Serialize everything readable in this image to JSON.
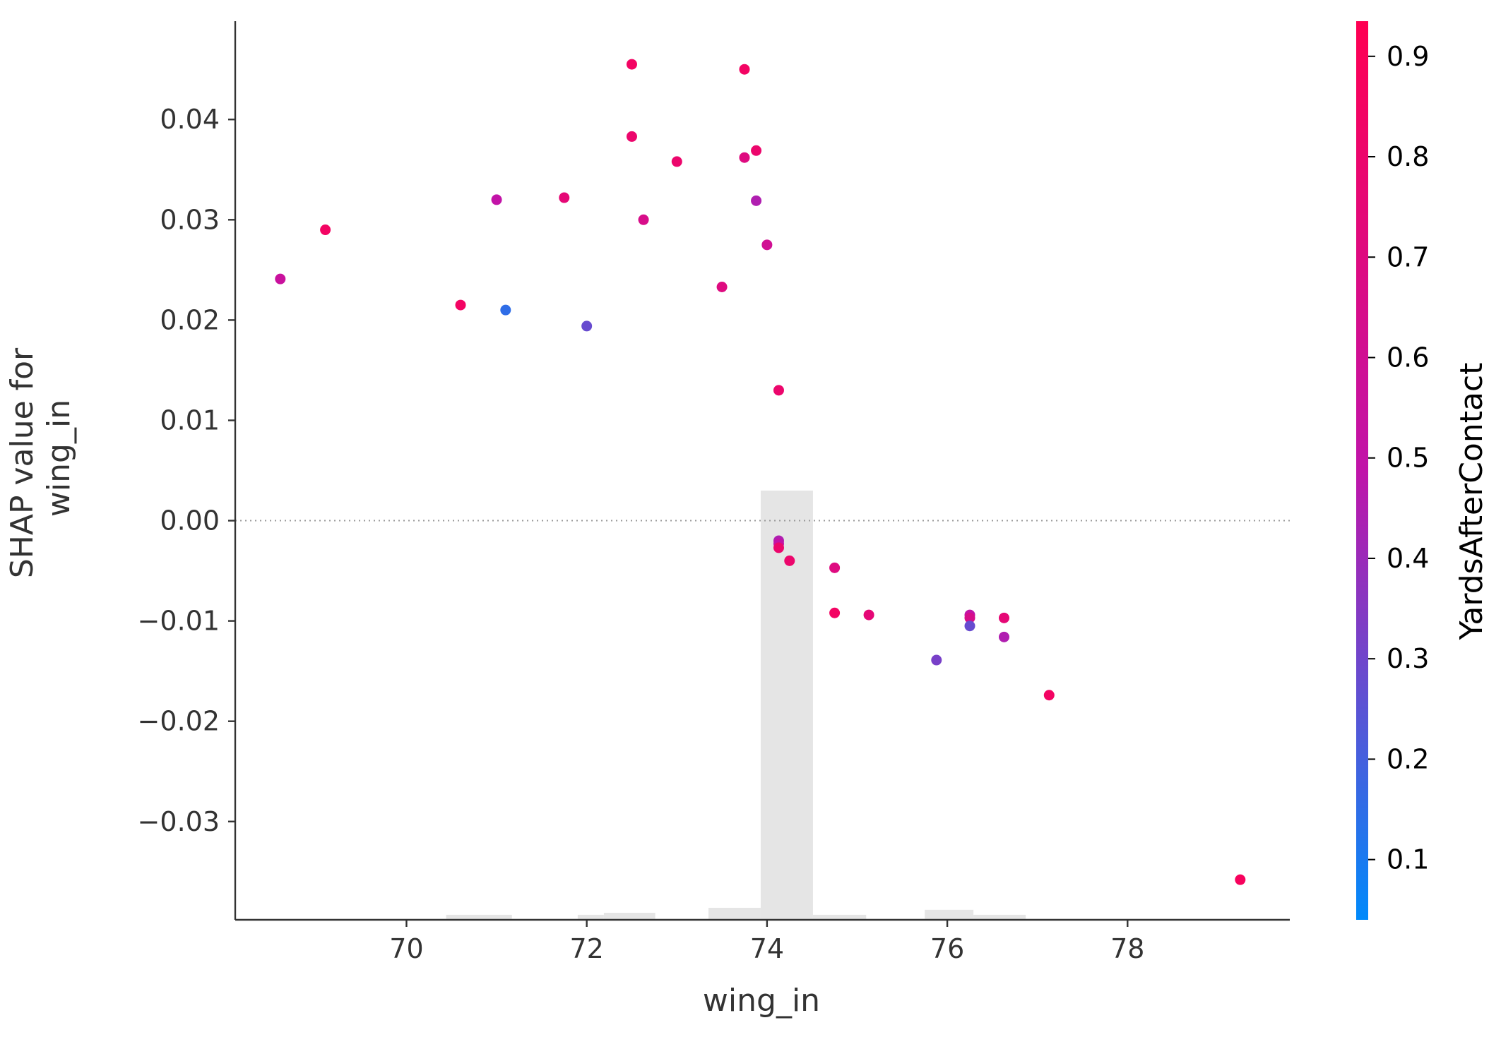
{
  "chart_data": {
    "type": "scatter",
    "xlabel": "wing_in",
    "ylabel_lines": [
      "SHAP value for",
      "wing_in"
    ],
    "xlim": [
      68.1,
      79.8
    ],
    "ylim": [
      -0.0398,
      0.0498
    ],
    "x_ticks": [
      {
        "value": 70,
        "label": "70"
      },
      {
        "value": 72,
        "label": "72"
      },
      {
        "value": 74,
        "label": "74"
      },
      {
        "value": 76,
        "label": "76"
      },
      {
        "value": 78,
        "label": "78"
      }
    ],
    "y_ticks": [
      {
        "value": 0.04,
        "label": "0.04"
      },
      {
        "value": 0.03,
        "label": "0.03"
      },
      {
        "value": 0.02,
        "label": "0.02"
      },
      {
        "value": 0.01,
        "label": "0.01"
      },
      {
        "value": 0.0,
        "label": "0.00"
      },
      {
        "value": -0.01,
        "label": "−0.01"
      },
      {
        "value": -0.02,
        "label": "−0.02"
      },
      {
        "value": -0.03,
        "label": "−0.03"
      }
    ],
    "zero_line": 0.0,
    "colorbar": {
      "label": "YardsAfterContact",
      "range": [
        0.04,
        0.935
      ],
      "ticks": [
        {
          "value": 0.1,
          "label": "0.1"
        },
        {
          "value": 0.2,
          "label": "0.2"
        },
        {
          "value": 0.3,
          "label": "0.3"
        },
        {
          "value": 0.4,
          "label": "0.4"
        },
        {
          "value": 0.5,
          "label": "0.5"
        },
        {
          "value": 0.6,
          "label": "0.6"
        },
        {
          "value": 0.7,
          "label": "0.7"
        },
        {
          "value": 0.8,
          "label": "0.8"
        },
        {
          "value": 0.9,
          "label": "0.9"
        }
      ],
      "color_low": "#008afb",
      "color_mid": "#c014a9",
      "color_high": "#ff0052"
    },
    "histogram": {
      "color": "#e5e5e5",
      "max_height_value": 0.0428,
      "bins": [
        {
          "x0": 68.1,
          "x1": 69.27,
          "h": 0.0001
        },
        {
          "x0": 69.27,
          "x1": 70.44,
          "h": 0.0001
        },
        {
          "x0": 70.44,
          "x1": 71.17,
          "h": 0.0005
        },
        {
          "x0": 71.17,
          "x1": 71.9,
          "h": 0.0001
        },
        {
          "x0": 71.9,
          "x1": 72.19,
          "h": 0.0005
        },
        {
          "x0": 72.19,
          "x1": 72.76,
          "h": 0.0007
        },
        {
          "x0": 72.76,
          "x1": 73.35,
          "h": 0.0001
        },
        {
          "x0": 73.35,
          "x1": 73.93,
          "h": 0.0012
        },
        {
          "x0": 73.93,
          "x1": 74.51,
          "h": 0.0428
        },
        {
          "x0": 74.51,
          "x1": 75.1,
          "h": 0.0005
        },
        {
          "x0": 75.1,
          "x1": 75.75,
          "h": 0.0001
        },
        {
          "x0": 75.75,
          "x1": 76.29,
          "h": 0.001
        },
        {
          "x0": 76.29,
          "x1": 76.87,
          "h": 0.0005
        },
        {
          "x0": 76.87,
          "x1": 79.8,
          "h": 0.0001
        }
      ]
    },
    "points": [
      {
        "x": 68.6,
        "y": 0.0241,
        "c": 0.55
      },
      {
        "x": 69.1,
        "y": 0.029,
        "c": 0.85
      },
      {
        "x": 70.6,
        "y": 0.0215,
        "c": 0.85
      },
      {
        "x": 71.0,
        "y": 0.032,
        "c": 0.5
      },
      {
        "x": 71.1,
        "y": 0.021,
        "c": 0.15
      },
      {
        "x": 71.75,
        "y": 0.0322,
        "c": 0.75
      },
      {
        "x": 72.0,
        "y": 0.0194,
        "c": 0.28
      },
      {
        "x": 72.5,
        "y": 0.0455,
        "c": 0.85
      },
      {
        "x": 72.5,
        "y": 0.0383,
        "c": 0.8
      },
      {
        "x": 72.63,
        "y": 0.03,
        "c": 0.65
      },
      {
        "x": 73.0,
        "y": 0.0358,
        "c": 0.8
      },
      {
        "x": 73.5,
        "y": 0.0233,
        "c": 0.7
      },
      {
        "x": 73.75,
        "y": 0.045,
        "c": 0.85
      },
      {
        "x": 73.75,
        "y": 0.0362,
        "c": 0.7
      },
      {
        "x": 73.88,
        "y": 0.0369,
        "c": 0.8
      },
      {
        "x": 73.88,
        "y": 0.0319,
        "c": 0.45
      },
      {
        "x": 74.0,
        "y": 0.0275,
        "c": 0.6
      },
      {
        "x": 74.13,
        "y": 0.013,
        "c": 0.8
      },
      {
        "x": 74.13,
        "y": -0.002,
        "c": 0.45
      },
      {
        "x": 74.13,
        "y": -0.0023,
        "c": 0.5
      },
      {
        "x": 74.13,
        "y": -0.0027,
        "c": 0.8
      },
      {
        "x": 74.25,
        "y": -0.004,
        "c": 0.8
      },
      {
        "x": 74.75,
        "y": -0.0047,
        "c": 0.7
      },
      {
        "x": 74.75,
        "y": -0.0092,
        "c": 0.85
      },
      {
        "x": 75.13,
        "y": -0.0094,
        "c": 0.75
      },
      {
        "x": 75.88,
        "y": -0.0139,
        "c": 0.32
      },
      {
        "x": 76.25,
        "y": -0.0094,
        "c": 0.5
      },
      {
        "x": 76.25,
        "y": -0.0097,
        "c": 0.65
      },
      {
        "x": 76.25,
        "y": -0.0105,
        "c": 0.28
      },
      {
        "x": 76.63,
        "y": -0.0097,
        "c": 0.75
      },
      {
        "x": 76.63,
        "y": -0.0116,
        "c": 0.45
      },
      {
        "x": 77.13,
        "y": -0.0174,
        "c": 0.85
      },
      {
        "x": 79.25,
        "y": -0.0358,
        "c": 0.88
      }
    ]
  }
}
